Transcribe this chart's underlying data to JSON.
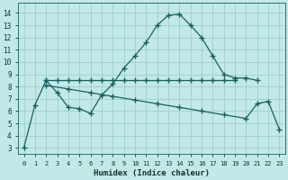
{
  "xlabel": "Humidex (Indice chaleur)",
  "background_color": "#c2e8e8",
  "grid_color": "#9ecece",
  "line_color": "#1a6060",
  "xlim": [
    -0.5,
    23.5
  ],
  "ylim": [
    2.5,
    14.8
  ],
  "xticks": [
    0,
    1,
    2,
    3,
    4,
    5,
    6,
    7,
    8,
    9,
    10,
    11,
    12,
    13,
    14,
    15,
    16,
    17,
    18,
    19,
    20,
    21,
    22,
    23
  ],
  "yticks": [
    3,
    4,
    5,
    6,
    7,
    8,
    9,
    10,
    11,
    12,
    13,
    14
  ],
  "line1_x": [
    0,
    1,
    2,
    3,
    4,
    5,
    6,
    7,
    8,
    9,
    10,
    11,
    12,
    13,
    14,
    15,
    16,
    17,
    18,
    19,
    20,
    21
  ],
  "line1_y": [
    3.0,
    6.5,
    8.5,
    7.5,
    6.3,
    6.2,
    5.8,
    7.3,
    8.2,
    9.5,
    10.5,
    11.6,
    13.0,
    13.8,
    13.9,
    13.0,
    12.0,
    10.5,
    9.0,
    8.7,
    8.7,
    8.5
  ],
  "line2_x": [
    2,
    3,
    4,
    5,
    6,
    7,
    8,
    9,
    10,
    11,
    12,
    13,
    14,
    15,
    16,
    17,
    18,
    19
  ],
  "line2_y": [
    8.5,
    8.5,
    8.5,
    8.5,
    8.5,
    8.5,
    8.5,
    8.5,
    8.5,
    8.5,
    8.5,
    8.5,
    8.5,
    8.5,
    8.5,
    8.5,
    8.5,
    8.5
  ],
  "line3_x": [
    2,
    4,
    6,
    8,
    10,
    12,
    14,
    16,
    18,
    20,
    21,
    22,
    23
  ],
  "line3_y": [
    8.1,
    7.8,
    7.5,
    7.2,
    6.9,
    6.6,
    6.3,
    6.0,
    5.7,
    5.4,
    6.6,
    6.8,
    4.5
  ]
}
